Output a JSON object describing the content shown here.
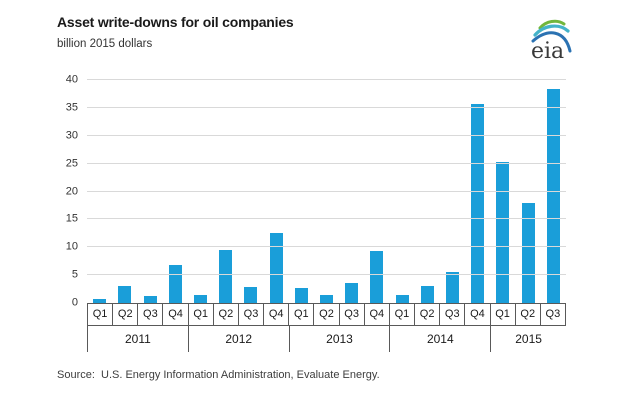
{
  "header": {
    "title": "Asset write-downs for oil companies",
    "subtitle": "billion 2015 dollars"
  },
  "logo": {
    "text": "eia"
  },
  "chart_data": {
    "type": "bar",
    "title": "Asset write-downs for oil companies",
    "ylabel": "billion 2015 dollars",
    "xlabel": "",
    "ylim": [
      0,
      40
    ],
    "yticks": [
      0,
      5,
      10,
      15,
      20,
      25,
      30,
      35,
      40
    ],
    "grid": true,
    "legend": false,
    "bar_color": "#1a9ed9",
    "categories": [
      "Q1 2011",
      "Q2 2011",
      "Q3 2011",
      "Q4 2011",
      "Q1 2012",
      "Q2 2012",
      "Q3 2012",
      "Q4 2012",
      "Q1 2013",
      "Q2 2013",
      "Q3 2013",
      "Q4 2013",
      "Q1 2014",
      "Q2 2014",
      "Q3 2014",
      "Q4 2014",
      "Q1 2015",
      "Q2 2015",
      "Q3 2015"
    ],
    "quarter_labels": [
      "Q1",
      "Q2",
      "Q3",
      "Q4",
      "Q1",
      "Q2",
      "Q3",
      "Q4",
      "Q1",
      "Q2",
      "Q3",
      "Q4",
      "Q1",
      "Q2",
      "Q3",
      "Q4",
      "Q1",
      "Q2",
      "Q3"
    ],
    "year_groups": [
      {
        "label": "2011",
        "quarters": 4
      },
      {
        "label": "2012",
        "quarters": 4
      },
      {
        "label": "2013",
        "quarters": 4
      },
      {
        "label": "2014",
        "quarters": 4
      },
      {
        "label": "2015",
        "quarters": 3
      }
    ],
    "values": [
      0.7,
      3.0,
      1.2,
      6.9,
      1.4,
      9.5,
      2.8,
      12.6,
      2.7,
      1.4,
      3.6,
      9.3,
      1.4,
      3.0,
      5.5,
      35.7,
      25.3,
      18.0,
      38.3
    ]
  },
  "source": {
    "text": "Source:  U.S. Energy Information Administration, Evaluate Energy."
  },
  "colors": {
    "gridline": "#d9d9d9",
    "axis": "#595959",
    "logo_green": "#71b63c",
    "logo_teal": "#44b3c9",
    "logo_blue": "#2b72b2"
  }
}
